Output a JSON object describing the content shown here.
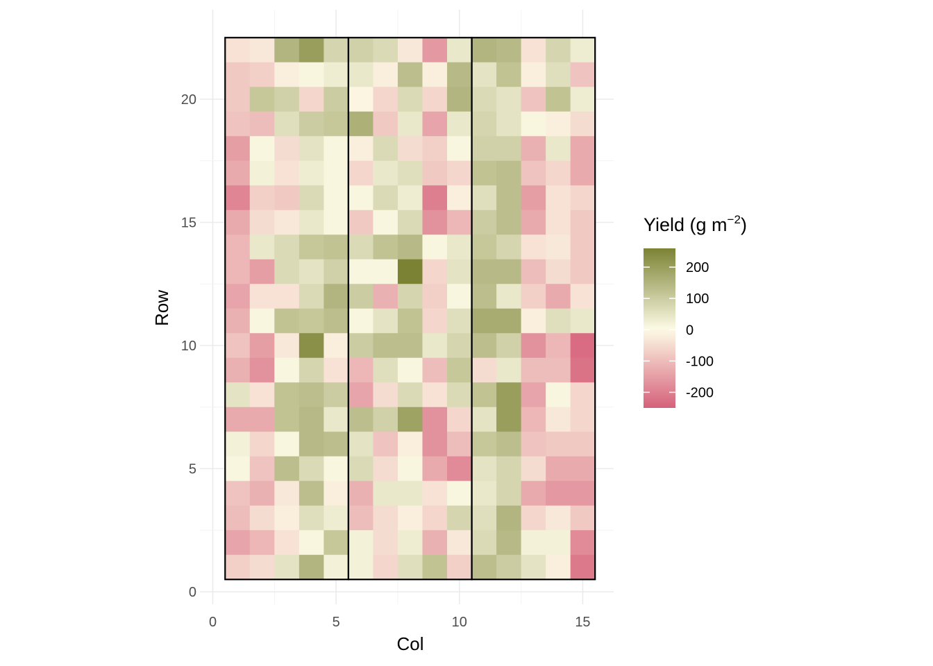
{
  "chart_data": {
    "type": "heatmap",
    "title": "",
    "xlabel": "Col",
    "ylabel": "Row",
    "xlim": [
      0,
      15.5
    ],
    "ylim": [
      0,
      22.5
    ],
    "x_ticks": [
      "0",
      "5",
      "10",
      "15"
    ],
    "y_ticks": [
      "0",
      "5",
      "10",
      "15",
      "20"
    ],
    "grid": "on",
    "n_cols": 15,
    "n_rows": 22,
    "block_dividers_after_col": [
      5,
      10
    ],
    "legend": {
      "title_main": "Yield (g m",
      "title_sup": "−2",
      "title_close": ")",
      "placement": "right",
      "range": [
        -250,
        260
      ],
      "ticks": [
        200,
        100,
        0,
        -100,
        -200
      ],
      "tick_labels": [
        "200",
        "100",
        "0",
        "-100",
        "-200"
      ],
      "colors": {
        "low": "#d6607a",
        "mid": "#fdfbe6",
        "high": "#7b8233"
      }
    },
    "rows_top_to_bottom": [
      [
        -40,
        -30,
        150,
        200,
        80,
        90,
        70,
        -30,
        -160,
        40,
        150,
        140,
        -40,
        80,
        30
      ],
      [
        -80,
        -70,
        -20,
        10,
        30,
        40,
        -20,
        130,
        -20,
        140,
        50,
        120,
        -20,
        60,
        -90
      ],
      [
        -80,
        110,
        90,
        -60,
        100,
        -10,
        -60,
        70,
        -60,
        150,
        70,
        50,
        -90,
        120,
        30
      ],
      [
        -90,
        -100,
        60,
        100,
        110,
        160,
        -80,
        40,
        -140,
        40,
        80,
        50,
        10,
        -20,
        -50
      ],
      [
        -150,
        10,
        -50,
        50,
        10,
        -20,
        70,
        -50,
        -70,
        10,
        90,
        90,
        -120,
        40,
        -130
      ],
      [
        -130,
        20,
        -40,
        30,
        10,
        -60,
        40,
        60,
        -80,
        -60,
        120,
        130,
        -90,
        -60,
        -130
      ],
      [
        -190,
        -70,
        -80,
        70,
        10,
        10,
        70,
        30,
        -200,
        -20,
        60,
        130,
        -150,
        -40,
        -60
      ],
      [
        -130,
        -50,
        -30,
        40,
        10,
        -80,
        10,
        70,
        -170,
        -110,
        100,
        130,
        -130,
        -40,
        -80
      ],
      [
        -110,
        40,
        70,
        110,
        120,
        70,
        120,
        140,
        10,
        40,
        110,
        80,
        -40,
        -30,
        -80
      ],
      [
        -110,
        -150,
        70,
        50,
        90,
        10,
        10,
        260,
        -60,
        50,
        140,
        140,
        -100,
        -50,
        -80
      ],
      [
        -140,
        -40,
        -40,
        70,
        150,
        100,
        -120,
        80,
        -70,
        10,
        130,
        40,
        -70,
        -130,
        -40
      ],
      [
        -120,
        10,
        120,
        110,
        130,
        10,
        50,
        120,
        -60,
        60,
        170,
        170,
        -20,
        60,
        40
      ],
      [
        -90,
        -150,
        -30,
        230,
        -20,
        100,
        130,
        130,
        40,
        80,
        130,
        90,
        -170,
        -110,
        -230
      ],
      [
        -120,
        -170,
        10,
        80,
        -40,
        -110,
        60,
        10,
        -100,
        110,
        -50,
        40,
        -100,
        -100,
        -220
      ],
      [
        50,
        -40,
        120,
        130,
        100,
        -140,
        -50,
        70,
        -40,
        70,
        120,
        200,
        -140,
        10,
        -60
      ],
      [
        -130,
        -130,
        120,
        140,
        40,
        130,
        90,
        190,
        -170,
        -60,
        50,
        200,
        -110,
        -30,
        -60
      ],
      [
        20,
        -60,
        10,
        140,
        130,
        50,
        -90,
        -20,
        -170,
        -100,
        110,
        130,
        -90,
        -80,
        -80
      ],
      [
        10,
        -90,
        130,
        70,
        10,
        70,
        -50,
        10,
        -130,
        -180,
        50,
        80,
        -50,
        -130,
        -130
      ],
      [
        -90,
        -120,
        -30,
        130,
        -20,
        -120,
        40,
        40,
        -40,
        10,
        40,
        80,
        -130,
        -160,
        -160
      ],
      [
        -100,
        -50,
        -20,
        60,
        30,
        -100,
        -50,
        -20,
        -60,
        80,
        60,
        150,
        -60,
        -30,
        -80
      ],
      [
        -140,
        -110,
        -40,
        10,
        110,
        20,
        -50,
        30,
        -120,
        -30,
        70,
        140,
        20,
        20,
        -180
      ],
      [
        -70,
        -50,
        50,
        150,
        20,
        20,
        -60,
        60,
        120,
        -70,
        130,
        100,
        50,
        -20,
        -210
      ]
    ]
  }
}
